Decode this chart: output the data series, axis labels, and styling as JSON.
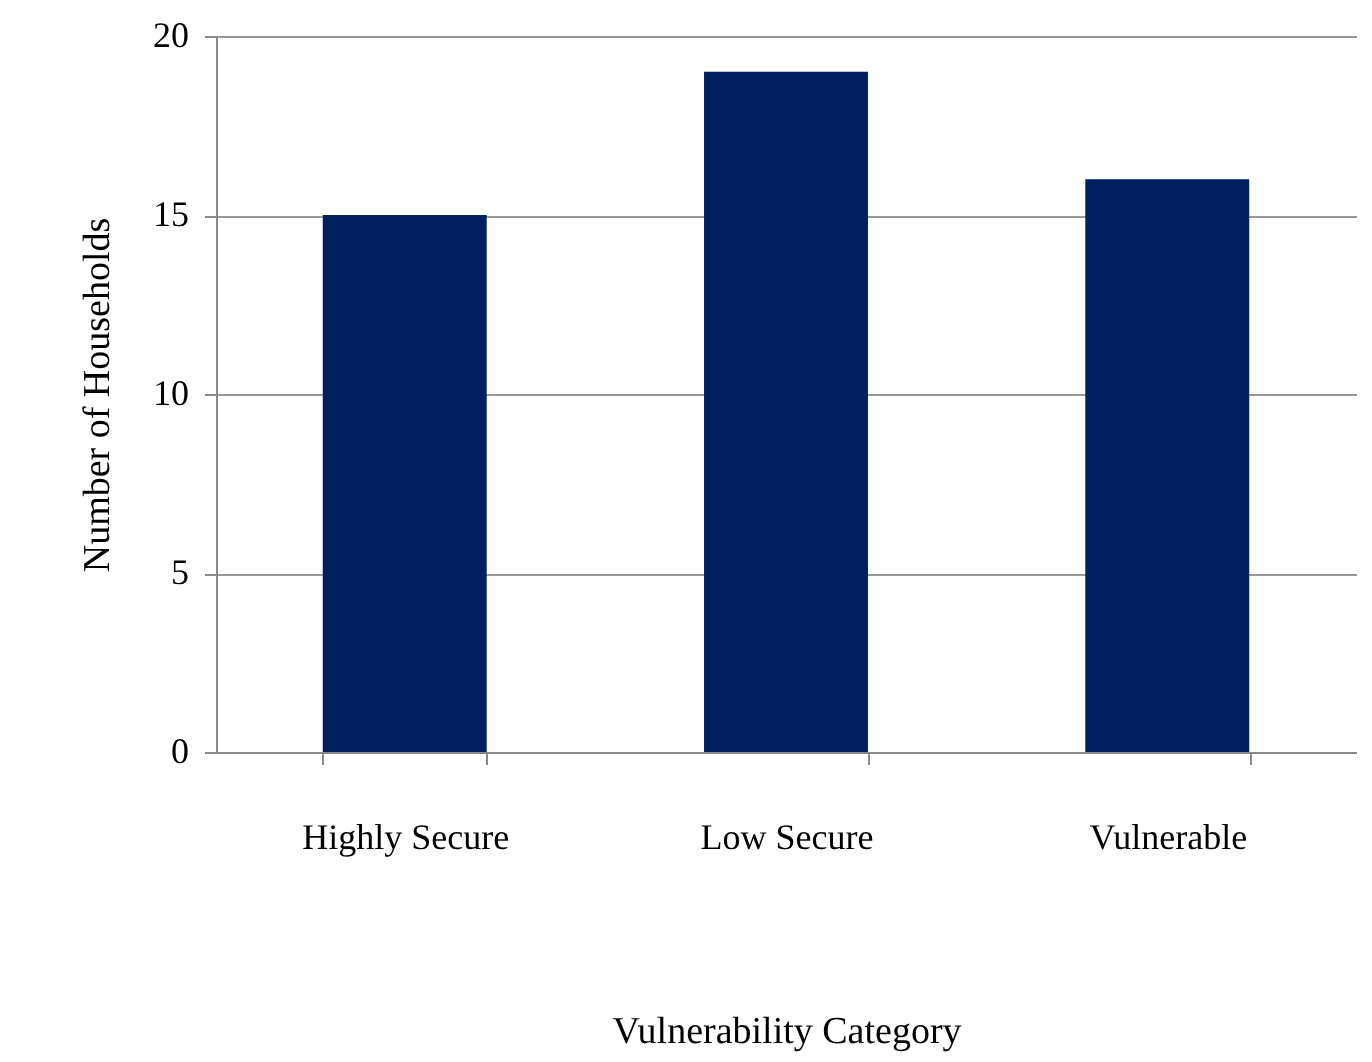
{
  "chart_data": {
    "type": "bar",
    "xlabel": "Vulnerability Category",
    "ylabel": "Number of Households",
    "categories": [
      "Highly Secure",
      "Low Secure",
      "Vulnerable"
    ],
    "values": [
      15,
      19,
      16
    ],
    "color": "#002060",
    "ylim": [
      0,
      20
    ],
    "yticks": [
      0,
      5,
      10,
      15,
      20
    ],
    "grid": "y"
  }
}
